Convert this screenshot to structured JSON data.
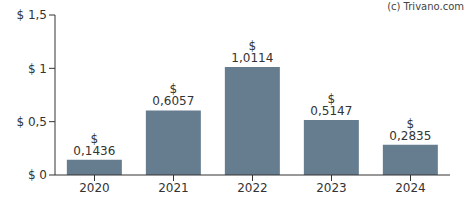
{
  "chart_data": {
    "type": "bar",
    "annotations": [
      "(c) Trivano.com"
    ],
    "categories": [
      "2020",
      "2021",
      "2022",
      "2023",
      "2024"
    ],
    "values": [
      0.1436,
      0.6057,
      1.0114,
      0.5147,
      0.2835
    ],
    "value_labels": [
      "$ 0,1436",
      "$ 0,6057",
      "$ 1,0114",
      "$ 0,5147",
      "$ 0,2835"
    ],
    "data_labels": true,
    "color": "#667d8f",
    "ylim": [
      0,
      1.5
    ],
    "yticks": [
      {
        "value": 0,
        "label": "$ 0"
      },
      {
        "value": 0.5,
        "label": "$ 0,5"
      },
      {
        "value": 1,
        "label": "$ 1"
      },
      {
        "value": 1.5,
        "label": "$ 1,5"
      }
    ],
    "grid": false
  }
}
